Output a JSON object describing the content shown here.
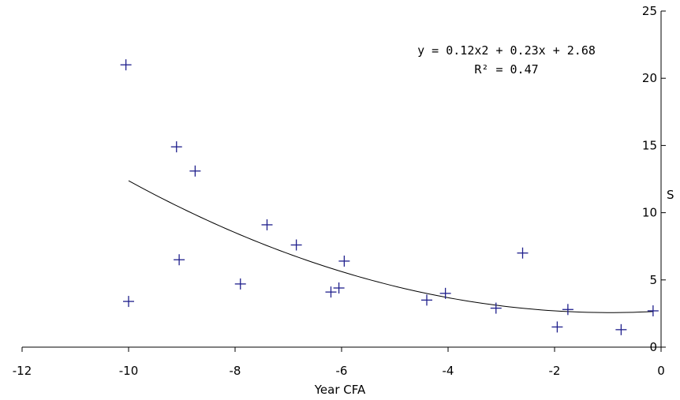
{
  "chart_data": {
    "type": "scatter",
    "title": "",
    "xlabel": "Year CFA",
    "ylabel": "S",
    "xlim": [
      -12,
      0
    ],
    "ylim": [
      0,
      25
    ],
    "x_ticks": [
      "-12",
      "-10",
      "-8",
      "-6",
      "-4",
      "-2",
      "0"
    ],
    "y_ticks": [
      "0",
      "5",
      "10",
      "15",
      "20",
      "25"
    ],
    "x_tick_values": [
      -12,
      -10,
      -8,
      -6,
      -4,
      -2,
      0
    ],
    "y_tick_values": [
      0,
      5,
      10,
      15,
      20,
      25
    ],
    "grid": false,
    "legend": "none",
    "series": [
      {
        "marker": "plus",
        "color": "#1f1f8c",
        "points": [
          {
            "x": -10.05,
            "y": 21.0
          },
          {
            "x": -10.0,
            "y": 3.4
          },
          {
            "x": -9.1,
            "y": 14.9
          },
          {
            "x": -9.05,
            "y": 6.5
          },
          {
            "x": -8.75,
            "y": 13.1
          },
          {
            "x": -7.9,
            "y": 4.7
          },
          {
            "x": -7.4,
            "y": 9.1
          },
          {
            "x": -6.85,
            "y": 7.6
          },
          {
            "x": -6.2,
            "y": 4.1
          },
          {
            "x": -6.05,
            "y": 4.4
          },
          {
            "x": -5.95,
            "y": 6.4
          },
          {
            "x": -4.4,
            "y": 3.5
          },
          {
            "x": -4.05,
            "y": 4.0
          },
          {
            "x": -3.1,
            "y": 2.9
          },
          {
            "x": -2.6,
            "y": 7.0
          },
          {
            "x": -1.95,
            "y": 1.5
          },
          {
            "x": -1.75,
            "y": 2.8
          },
          {
            "x": -0.75,
            "y": 1.3
          },
          {
            "x": -0.15,
            "y": 2.7
          }
        ]
      }
    ],
    "trendline": {
      "type": "polynomial",
      "coefficients": [
        0.12,
        0.23,
        2.68
      ],
      "x_range": [
        -10,
        -0.15
      ],
      "equation": "y = 0.12x2 + 0.23x + 2.68",
      "r_squared": "R² = 0.47",
      "color": "#000000"
    }
  }
}
